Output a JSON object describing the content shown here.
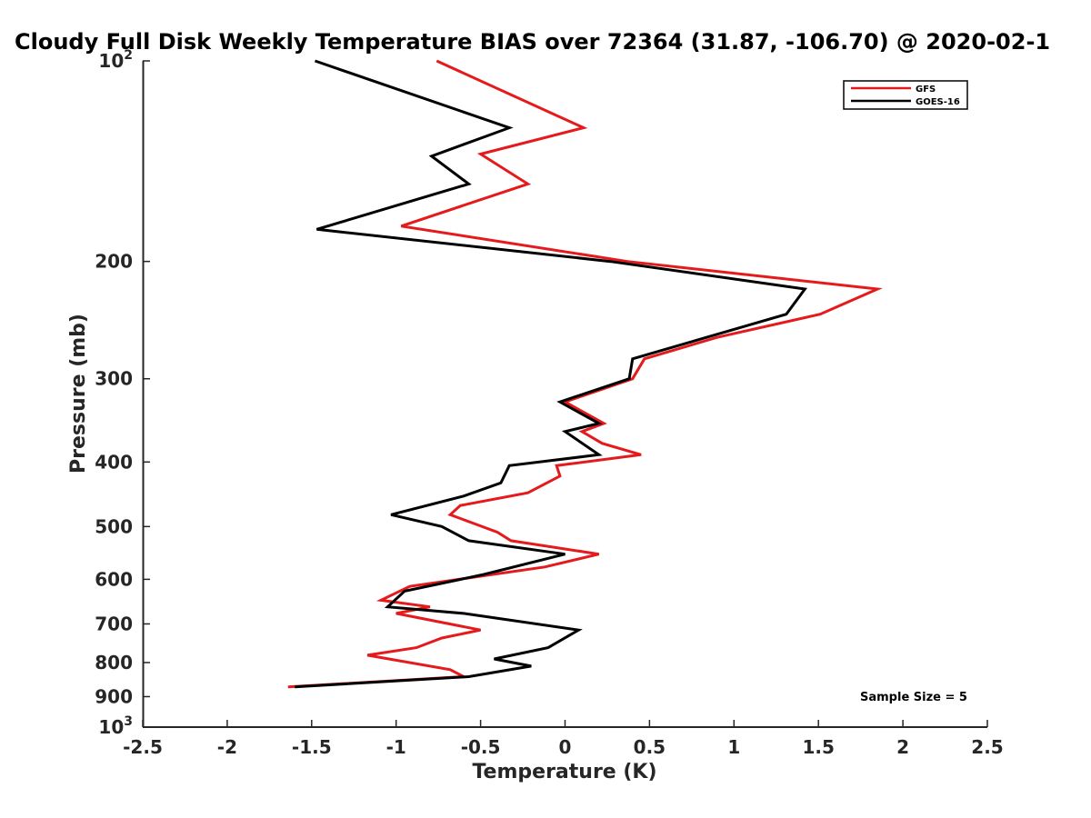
{
  "chart_data": {
    "type": "line",
    "title": "Cloudy Full Disk Weekly Temperature BIAS over 72364 (31.87, -106.70) @ 2020-02-1",
    "xlabel": "Temperature (K)",
    "ylabel": "Pressure (mb)",
    "xlim": [
      -2.5,
      2.5
    ],
    "ylim": [
      100,
      1000
    ],
    "y_scale": "log",
    "y_reversed": true,
    "grid": false,
    "x_ticks": [
      -2.5,
      -2,
      -1.5,
      -1,
      -0.5,
      0,
      0.5,
      1,
      1.5,
      2,
      2.5
    ],
    "x_tick_labels": [
      "-2.5",
      "-2",
      "-1.5",
      "-1",
      "-0.5",
      "0",
      "0.5",
      "1",
      "1.5",
      "2",
      "2.5"
    ],
    "y_ticks": [
      {
        "value": 100,
        "base": "10",
        "exp": "2"
      },
      {
        "value": 200,
        "label": "200"
      },
      {
        "value": 300,
        "label": "300"
      },
      {
        "value": 400,
        "label": "400"
      },
      {
        "value": 500,
        "label": "500"
      },
      {
        "value": 600,
        "label": "600"
      },
      {
        "value": 700,
        "label": "700"
      },
      {
        "value": 800,
        "label": "800"
      },
      {
        "value": 900,
        "label": "900"
      },
      {
        "value": 1000,
        "base": "10",
        "exp": "3"
      }
    ],
    "legend": {
      "location": "top-right"
    },
    "annotation": "Sample Size = 5",
    "series": [
      {
        "name": "GFS",
        "color": "#e41a1c",
        "points": [
          {
            "p": 100,
            "t": -0.76
          },
          {
            "p": 126,
            "t": 0.11
          },
          {
            "p": 138,
            "t": -0.5
          },
          {
            "p": 153,
            "t": -0.22
          },
          {
            "p": 177,
            "t": -0.97
          },
          {
            "p": 200,
            "t": 0.37
          },
          {
            "p": 220,
            "t": 1.85
          },
          {
            "p": 240,
            "t": 1.51
          },
          {
            "p": 260,
            "t": 0.9
          },
          {
            "p": 280,
            "t": 0.47
          },
          {
            "p": 300,
            "t": 0.4
          },
          {
            "p": 325,
            "t": 0.0
          },
          {
            "p": 350,
            "t": 0.23
          },
          {
            "p": 360,
            "t": 0.1
          },
          {
            "p": 375,
            "t": 0.22
          },
          {
            "p": 390,
            "t": 0.45
          },
          {
            "p": 405,
            "t": -0.05
          },
          {
            "p": 420,
            "t": -0.03
          },
          {
            "p": 445,
            "t": -0.22
          },
          {
            "p": 465,
            "t": -0.62
          },
          {
            "p": 480,
            "t": -0.68
          },
          {
            "p": 510,
            "t": -0.4
          },
          {
            "p": 525,
            "t": -0.32
          },
          {
            "p": 550,
            "t": 0.2
          },
          {
            "p": 575,
            "t": -0.12
          },
          {
            "p": 615,
            "t": -0.92
          },
          {
            "p": 645,
            "t": -1.09
          },
          {
            "p": 660,
            "t": -0.8
          },
          {
            "p": 675,
            "t": -1.0
          },
          {
            "p": 715,
            "t": -0.5
          },
          {
            "p": 735,
            "t": -0.73
          },
          {
            "p": 760,
            "t": -0.88
          },
          {
            "p": 780,
            "t": -1.17
          },
          {
            "p": 820,
            "t": -0.68
          },
          {
            "p": 840,
            "t": -0.6
          },
          {
            "p": 870,
            "t": -1.64
          }
        ]
      },
      {
        "name": "GOES-16",
        "color": "#000000",
        "points": [
          {
            "p": 100,
            "t": -1.48
          },
          {
            "p": 126,
            "t": -0.33
          },
          {
            "p": 139,
            "t": -0.79
          },
          {
            "p": 153,
            "t": -0.57
          },
          {
            "p": 179,
            "t": -1.47
          },
          {
            "p": 200,
            "t": 0.27
          },
          {
            "p": 220,
            "t": 1.42
          },
          {
            "p": 240,
            "t": 1.31
          },
          {
            "p": 280,
            "t": 0.4
          },
          {
            "p": 300,
            "t": 0.38
          },
          {
            "p": 325,
            "t": -0.03
          },
          {
            "p": 350,
            "t": 0.2
          },
          {
            "p": 360,
            "t": 0.0
          },
          {
            "p": 390,
            "t": 0.2
          },
          {
            "p": 405,
            "t": -0.33
          },
          {
            "p": 430,
            "t": -0.38
          },
          {
            "p": 450,
            "t": -0.6
          },
          {
            "p": 480,
            "t": -1.03
          },
          {
            "p": 500,
            "t": -0.73
          },
          {
            "p": 525,
            "t": -0.57
          },
          {
            "p": 550,
            "t": 0.0
          },
          {
            "p": 590,
            "t": -0.48
          },
          {
            "p": 625,
            "t": -0.95
          },
          {
            "p": 660,
            "t": -1.05
          },
          {
            "p": 675,
            "t": -0.6
          },
          {
            "p": 715,
            "t": 0.08
          },
          {
            "p": 760,
            "t": -0.1
          },
          {
            "p": 790,
            "t": -0.42
          },
          {
            "p": 810,
            "t": -0.2
          },
          {
            "p": 840,
            "t": -0.57
          },
          {
            "p": 870,
            "t": -1.6
          }
        ]
      }
    ]
  }
}
